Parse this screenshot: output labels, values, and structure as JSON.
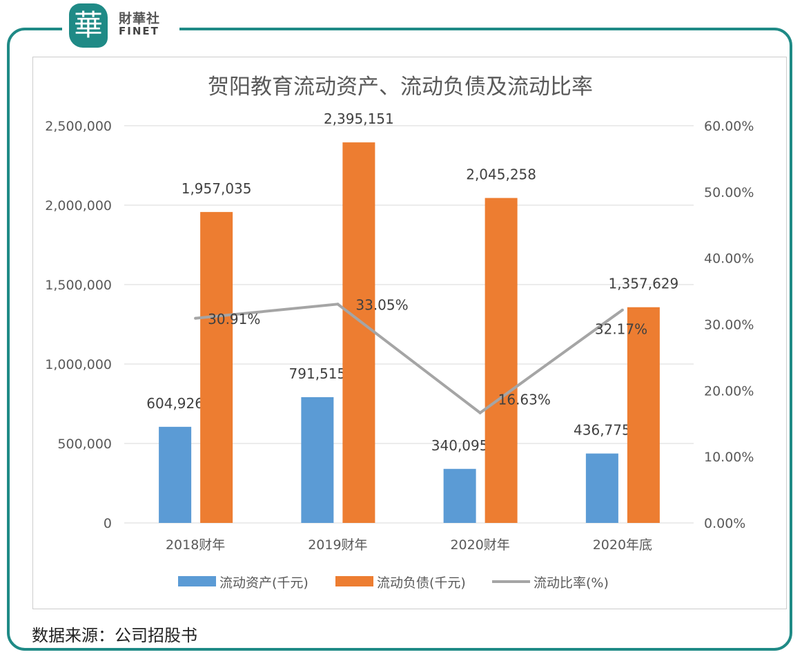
{
  "brand": {
    "logo_char": "華",
    "name_cn": "財華社",
    "name_en": "FINET",
    "color": "#1f8a86"
  },
  "source": "数据来源：公司招股书",
  "chart_data": {
    "type": "bar+line",
    "title": "贺阳教育流动资产、流动负债及流动比率",
    "categories": [
      "2018财年",
      "2019财年",
      "2020财年",
      "2020年底"
    ],
    "series": [
      {
        "name": "流动资产(千元)",
        "type": "bar",
        "axis": "left",
        "color": "#5b9bd5",
        "values": [
          604926,
          791515,
          340095,
          436775
        ],
        "labels": [
          "604,926",
          "791,515",
          "340,095",
          "436,775"
        ]
      },
      {
        "name": "流动负债(千元)",
        "type": "bar",
        "axis": "left",
        "color": "#ed7d31",
        "values": [
          1957035,
          2395151,
          2045258,
          1357629
        ],
        "labels": [
          "1,957,035",
          "2,395,151",
          "2,045,258",
          "1,357,629"
        ]
      },
      {
        "name": "流动比率(%)",
        "type": "line",
        "axis": "right",
        "color": "#a5a5a5",
        "values": [
          30.91,
          33.05,
          16.63,
          32.17
        ],
        "labels": [
          "30.91%",
          "33.05%",
          "16.63%",
          "32.17%"
        ]
      }
    ],
    "y_left": {
      "range": [
        0,
        2500000
      ],
      "ticks": [
        "0",
        "500,000",
        "1,000,000",
        "1,500,000",
        "2,000,000",
        "2,500,000"
      ]
    },
    "y_right": {
      "range": [
        0,
        60
      ],
      "ticks": [
        "0.00%",
        "10.00%",
        "20.00%",
        "30.00%",
        "40.00%",
        "50.00%",
        "60.00%"
      ]
    },
    "grid": true,
    "legend": "bottom"
  }
}
